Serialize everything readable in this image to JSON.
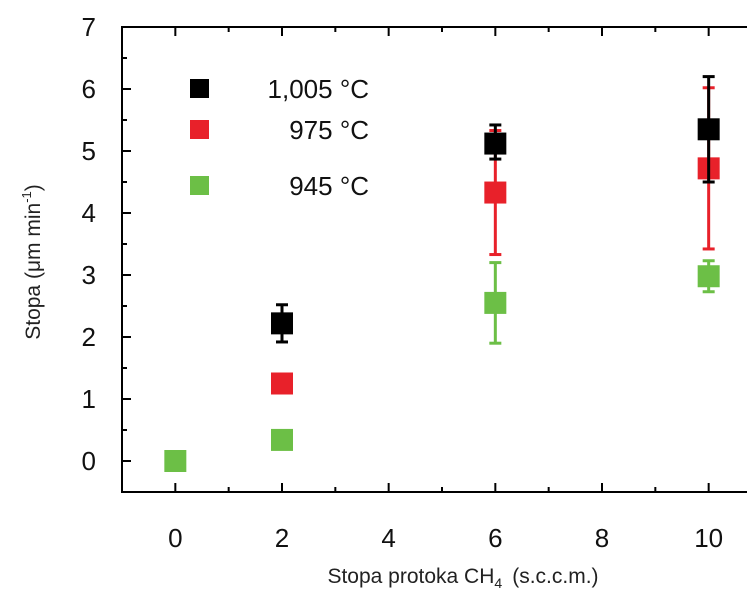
{
  "chart_data": {
    "type": "scatter",
    "xlabel": "Stopa protoka CH",
    "xlabel_sub": "4",
    "xlabel_unit": "(s.c.c.m.)",
    "ylabel": "Stopa (μm min",
    "ylabel_sup": "-1",
    "ylabel_close": ")",
    "xlim": [
      -1,
      11
    ],
    "ylim": [
      -0.5,
      7
    ],
    "xticks": [
      0,
      2,
      4,
      6,
      8,
      10
    ],
    "yticks": [
      0,
      1,
      2,
      3,
      4,
      5,
      6,
      7
    ],
    "grid": false,
    "legend_position": "top-left",
    "series": [
      {
        "name": "1,005 °C",
        "color": "#000000",
        "x": [
          2,
          6,
          10
        ],
        "y": [
          2.22,
          5.12,
          5.35
        ],
        "err_low": [
          0.3,
          0.25,
          0.85
        ],
        "err_high": [
          0.3,
          0.3,
          0.85
        ]
      },
      {
        "name": "975 °C",
        "color": "#e8212a",
        "x": [
          2,
          6,
          10
        ],
        "y": [
          1.25,
          4.33,
          4.72
        ],
        "err_low": [
          0.1,
          1.0,
          1.3
        ],
        "err_high": [
          0.1,
          1.0,
          1.3
        ]
      },
      {
        "name": "945 °C",
        "color": "#6cbf46",
        "x": [
          0,
          2,
          6,
          10
        ],
        "y": [
          0.0,
          0.34,
          2.55,
          2.98
        ],
        "err_low": [
          0,
          0,
          0.65,
          0.25
        ],
        "err_high": [
          0,
          0,
          0.65,
          0.25
        ]
      }
    ]
  }
}
